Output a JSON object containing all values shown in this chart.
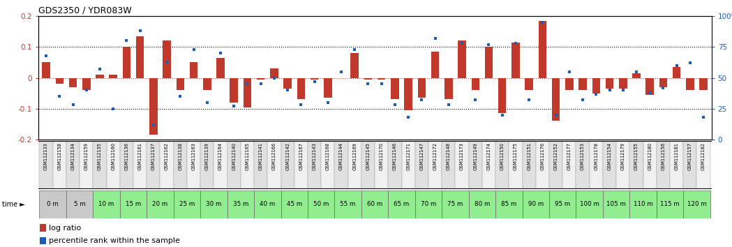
{
  "title": "GDS2350 / YDR083W",
  "ylim_left": [
    -0.2,
    0.2
  ],
  "yticks_left": [
    -0.2,
    -0.1,
    0.0,
    0.1,
    0.2
  ],
  "ytick_left_labels": [
    "-0.2",
    "-0.1",
    "0",
    "0.1",
    "0.2"
  ],
  "yticks_right": [
    0,
    25,
    50,
    75,
    100
  ],
  "ytick_right_labels": [
    "0",
    "25",
    "50",
    "75",
    "100%"
  ],
  "bar_color": "#C0392B",
  "dot_color": "#1a5eb8",
  "sample_ids": [
    "GSM112133",
    "GSM112158",
    "GSM112134",
    "GSM112159",
    "GSM112135",
    "GSM112160",
    "GSM112136",
    "GSM112161",
    "GSM112137",
    "GSM112162",
    "GSM112138",
    "GSM112163",
    "GSM112139",
    "GSM112164",
    "GSM112140",
    "GSM112165",
    "GSM112141",
    "GSM112166",
    "GSM112142",
    "GSM112167",
    "GSM112143",
    "GSM112168",
    "GSM112144",
    "GSM112169",
    "GSM112145",
    "GSM112170",
    "GSM112146",
    "GSM112171",
    "GSM112147",
    "GSM112172",
    "GSM112148",
    "GSM112173",
    "GSM112149",
    "GSM112174",
    "GSM112150",
    "GSM112175",
    "GSM112151",
    "GSM112176",
    "GSM112152",
    "GSM112177",
    "GSM112153",
    "GSM112178",
    "GSM112154",
    "GSM112179",
    "GSM112155",
    "GSM112180",
    "GSM112156",
    "GSM112181",
    "GSM112157",
    "GSM112182"
  ],
  "time_labels": [
    "0 m",
    "5 m",
    "10 m",
    "15 m",
    "20 m",
    "25 m",
    "30 m",
    "35 m",
    "40 m",
    "45 m",
    "50 m",
    "55 m",
    "60 m",
    "65 m",
    "70 m",
    "75 m",
    "80 m",
    "85 m",
    "90 m",
    "95 m",
    "100 m",
    "105 m",
    "110 m",
    "115 m",
    "120 m"
  ],
  "log_ratio": [
    0.05,
    -0.02,
    -0.03,
    -0.04,
    0.01,
    0.01,
    0.1,
    0.135,
    -0.185,
    0.12,
    -0.04,
    0.05,
    -0.04,
    0.065,
    -0.08,
    -0.095,
    -0.005,
    0.03,
    -0.035,
    -0.07,
    -0.005,
    -0.065,
    0.0,
    0.08,
    -0.005,
    -0.005,
    -0.07,
    -0.105,
    -0.065,
    0.085,
    -0.07,
    0.12,
    -0.04,
    0.1,
    -0.115,
    0.115,
    -0.04,
    0.185,
    -0.14,
    -0.04,
    -0.04,
    -0.05,
    -0.035,
    -0.035,
    0.015,
    -0.055,
    -0.03,
    0.035,
    -0.04,
    -0.04
  ],
  "percentile_rank": [
    68,
    35,
    28,
    40,
    57,
    25,
    80,
    88,
    12,
    63,
    35,
    73,
    30,
    70,
    27,
    45,
    45,
    50,
    40,
    28,
    47,
    30,
    55,
    73,
    45,
    45,
    28,
    18,
    32,
    82,
    28,
    78,
    32,
    77,
    20,
    78,
    32,
    95,
    20,
    55,
    32,
    37,
    40,
    40,
    55,
    38,
    42,
    60,
    62,
    18
  ],
  "legend_bar_label": "log ratio",
  "legend_dot_label": "percentile rank within the sample",
  "time_bg_color": "#90EE90",
  "time_first_bg": "#c8c8c8",
  "sample_bg_even": "#e0e0e0",
  "sample_bg_odd": "#f0f0f0"
}
